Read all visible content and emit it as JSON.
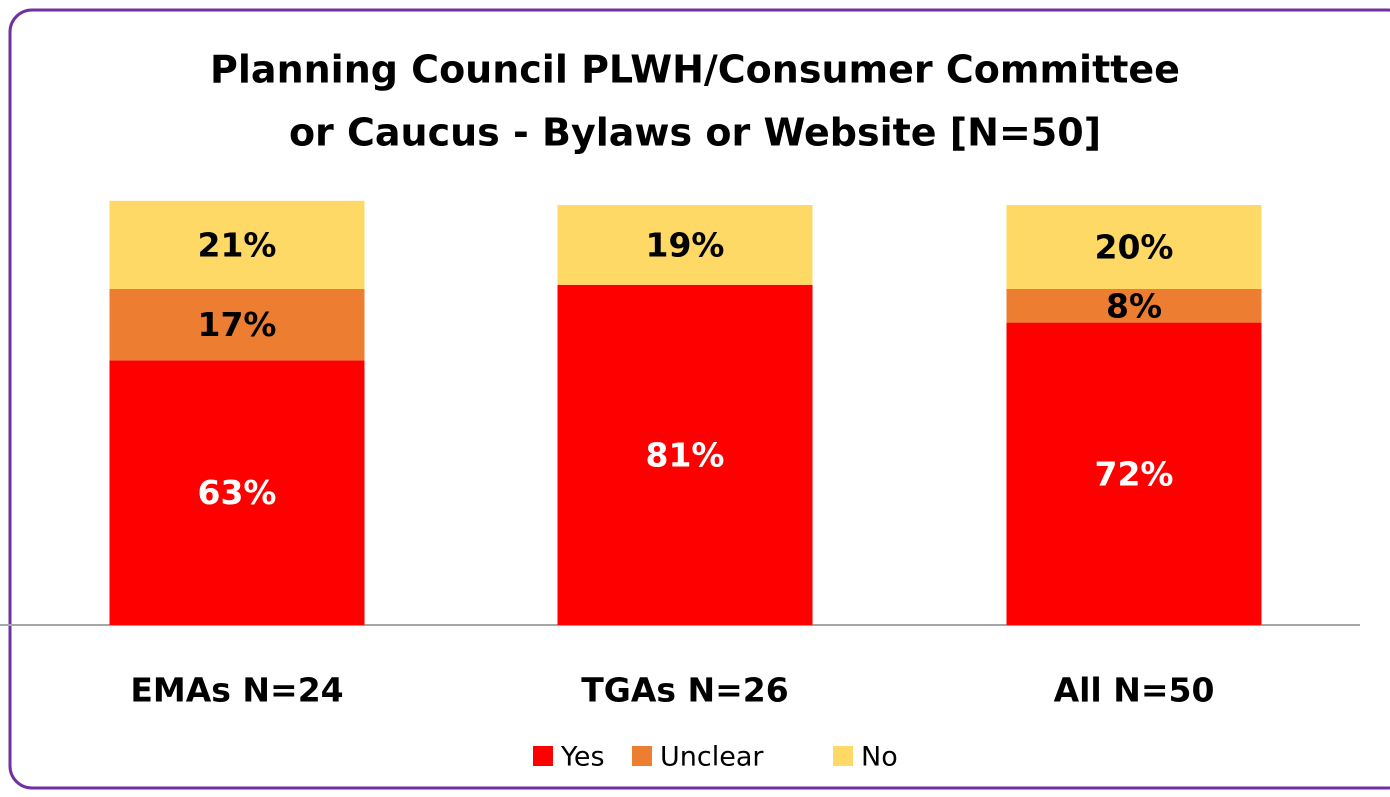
{
  "chart_data": {
    "type": "stacked_bar",
    "title": [
      "Planning Council PLWH/Consumer Committee",
      "or Caucus - Bylaws or Website  [N=50]"
    ],
    "categories": [
      "EMAs N=24",
      "TGAs N=26",
      "All N=50"
    ],
    "series": [
      {
        "name": "Yes",
        "color": "#ff0000",
        "label_color": "#ffffff",
        "values": [
          63,
          81,
          72
        ],
        "value_labels": [
          "63%",
          "81%",
          "72%"
        ]
      },
      {
        "name": "Unclear",
        "color": "#ed7d31",
        "label_color": "#000000",
        "values": [
          17,
          null,
          8
        ],
        "value_labels": [
          "17%",
          null,
          "8%"
        ]
      },
      {
        "name": "No",
        "color": "#ffd966",
        "label_color": "#000000",
        "values": [
          21,
          19,
          20
        ],
        "value_labels": [
          "21%",
          "19%",
          "20%"
        ]
      }
    ],
    "ylim": [
      0,
      100
    ],
    "legend": "bottom"
  }
}
